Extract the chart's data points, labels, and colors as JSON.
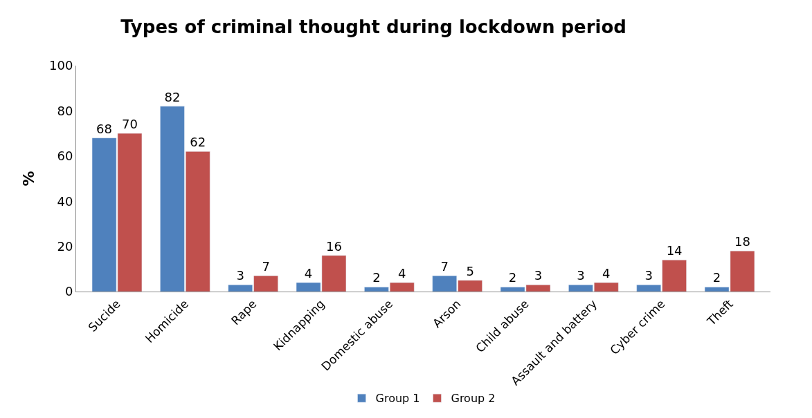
{
  "chart_data": {
    "type": "bar",
    "title": "Types of criminal thought during lockdown period",
    "ylabel": "%",
    "categories": [
      "Sucide",
      "Homicide",
      "Rape",
      "Kidnapping",
      "Domestic abuse",
      "Arson",
      "Child abuse",
      "Assault and battery",
      "Cyber crime",
      "Theft"
    ],
    "series": [
      {
        "name": "Group 1",
        "color": "#4f81bd",
        "values": [
          68,
          82,
          3,
          4,
          2,
          7,
          2,
          3,
          3,
          2
        ]
      },
      {
        "name": "Group 2",
        "color": "#c0504d",
        "values": [
          70,
          62,
          7,
          16,
          4,
          5,
          3,
          4,
          14,
          18
        ]
      }
    ],
    "ylim": [
      0,
      100
    ],
    "yticks": [
      0,
      20,
      40,
      60,
      80,
      100
    ],
    "data_labels": true,
    "legend": "bottom"
  }
}
